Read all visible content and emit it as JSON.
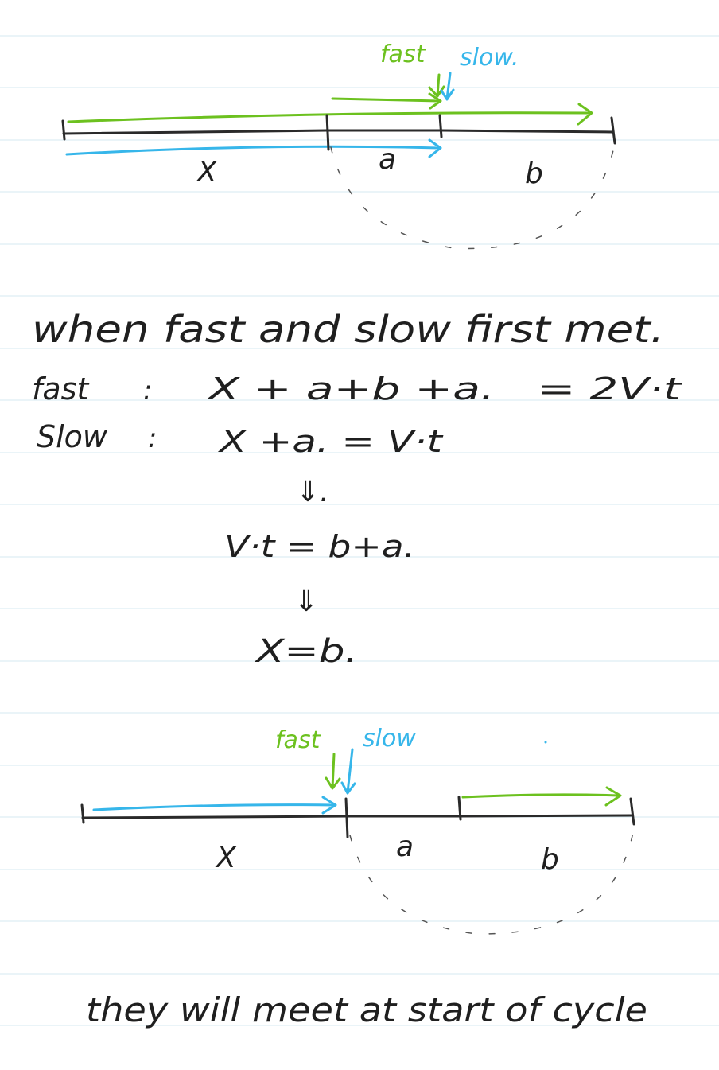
{
  "diagram_top": {
    "fast_label": "fast",
    "slow_label": "slow.",
    "segment_x": "X",
    "segment_a": "a",
    "segment_b": "b"
  },
  "derivation": {
    "heading": "when fast and slow first met.",
    "fast_label": "fast",
    "fast_sep": ":",
    "fast_expr": "X + a+b +a.",
    "fast_eq": "= 2V·t",
    "slow_label": "Slow",
    "slow_sep": ":",
    "slow_expr": "X +a. = V·t",
    "step1_arrow": "⇓.",
    "step1_expr": "V·t = b+a.",
    "step2_arrow": "⇓",
    "step2_expr": "X=b."
  },
  "diagram_bottom": {
    "fast_label": "fast",
    "slow_label": "slow",
    "segment_x": "X",
    "segment_a": "a",
    "segment_b": "b"
  },
  "conclusion": "they will meet at start of cycle",
  "colors": {
    "fast": "#6cc11f",
    "slow": "#36b6ea",
    "ink": "#1f1f1f",
    "ruled_line": "#d6eaf2"
  }
}
